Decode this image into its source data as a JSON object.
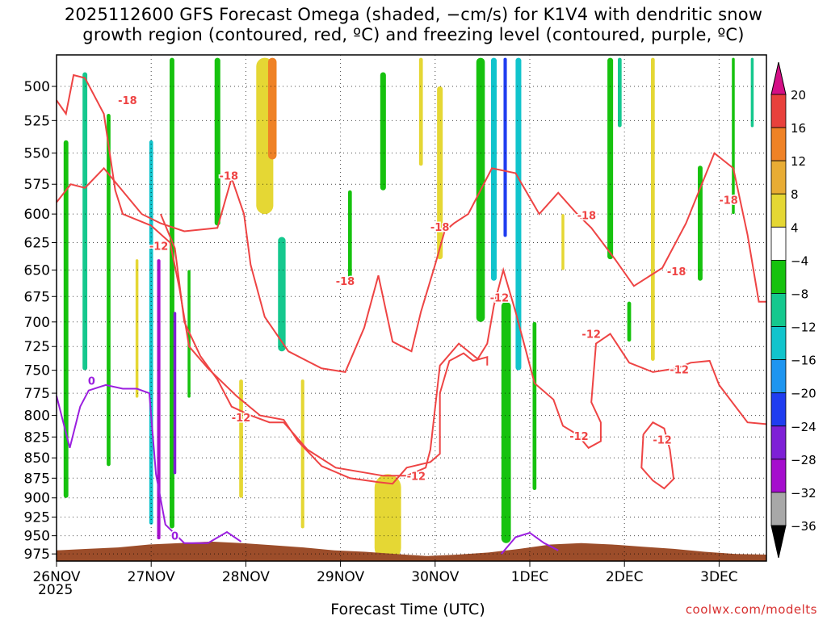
{
  "title_line1": "2025112600 GFS Forecast Omega (shaded, −cm/s) for K1V4 with dendritic snow",
  "title_line2": "growth region (contoured, red, ºC) and freezing level (contoured, purple, ºC)",
  "credit": "coolwx.com/modelts",
  "chart_data": {
    "type": "time-height contour",
    "xlabel": "Forecast Time (UTC)",
    "year_label": "2025",
    "x_ticks": [
      "26NOV",
      "27NOV",
      "28NOV",
      "29NOV",
      "30NOV",
      "1DEC",
      "2DEC",
      "3DEC"
    ],
    "x_range_days": [
      0,
      7.5
    ],
    "y_ticks": [
      500,
      525,
      550,
      575,
      600,
      625,
      650,
      675,
      700,
      725,
      750,
      775,
      800,
      825,
      850,
      875,
      900,
      925,
      950,
      975
    ],
    "y_range_hPa": [
      478,
      985
    ],
    "y_scale": "pressure (log)",
    "grid": "dotted",
    "colorbar": {
      "labels": [
        "20",
        "16",
        "12",
        "8",
        "4",
        "−4",
        "−8",
        "−12",
        "−16",
        "−20",
        "−24",
        "−28",
        "−32",
        "−36"
      ],
      "bins": [
        {
          "color": "#d40f86"
        },
        {
          "color": "#e8413c"
        },
        {
          "color": "#ef8226"
        },
        {
          "color": "#e8ac34"
        },
        {
          "color": "#e5d734"
        },
        {
          "color": "#ffffff"
        },
        {
          "color": "#16c20e"
        },
        {
          "color": "#15c88e"
        },
        {
          "color": "#11c4cc"
        },
        {
          "color": "#1e95f0"
        },
        {
          "color": "#1f3df0"
        },
        {
          "color": "#7e20d6"
        },
        {
          "color": "#a50ecd"
        },
        {
          "color": "#a8a8a8"
        },
        {
          "color": "#000000"
        }
      ]
    },
    "omega_features": [
      {
        "t": 0.1,
        "p0": 540,
        "p1": 900,
        "w": 0.05,
        "v": -8
      },
      {
        "t": 0.3,
        "p0": 490,
        "p1": 750,
        "w": 0.05,
        "v": -10
      },
      {
        "t": 0.55,
        "p0": 520,
        "p1": 860,
        "w": 0.04,
        "v": -6
      },
      {
        "t": 0.85,
        "p0": 640,
        "p1": 780,
        "w": 0.03,
        "v": 6
      },
      {
        "t": 1.0,
        "p0": 540,
        "p1": 935,
        "w": 0.04,
        "v": -14
      },
      {
        "t": 1.08,
        "p0": 640,
        "p1": 955,
        "w": 0.035,
        "v": -30
      },
      {
        "t": 1.22,
        "p0": 480,
        "p1": 940,
        "w": 0.05,
        "v": -8
      },
      {
        "t": 1.25,
        "p0": 690,
        "p1": 870,
        "w": 0.03,
        "v": -26
      },
      {
        "t": 1.4,
        "p0": 650,
        "p1": 780,
        "w": 0.03,
        "v": -6
      },
      {
        "t": 1.7,
        "p0": 480,
        "p1": 610,
        "w": 0.06,
        "v": -7
      },
      {
        "t": 1.95,
        "p0": 760,
        "p1": 900,
        "w": 0.04,
        "v": 6
      },
      {
        "t": 2.2,
        "p0": 480,
        "p1": 600,
        "w": 0.18,
        "v": 6
      },
      {
        "t": 2.28,
        "p0": 480,
        "p1": 555,
        "w": 0.09,
        "v": 12
      },
      {
        "t": 2.38,
        "p0": 620,
        "p1": 730,
        "w": 0.08,
        "v": -9
      },
      {
        "t": 2.6,
        "p0": 760,
        "p1": 940,
        "w": 0.035,
        "v": 6
      },
      {
        "t": 3.1,
        "p0": 580,
        "p1": 660,
        "w": 0.04,
        "v": -7
      },
      {
        "t": 3.45,
        "p0": 490,
        "p1": 580,
        "w": 0.06,
        "v": -7
      },
      {
        "t": 3.5,
        "p0": 870,
        "p1": 985,
        "w": 0.28,
        "v": 6
      },
      {
        "t": 3.85,
        "p0": 480,
        "p1": 560,
        "w": 0.04,
        "v": 6
      },
      {
        "t": 4.05,
        "p0": 500,
        "p1": 640,
        "w": 0.06,
        "v": 6
      },
      {
        "t": 4.48,
        "p0": 480,
        "p1": 700,
        "w": 0.09,
        "v": -8
      },
      {
        "t": 4.62,
        "p0": 480,
        "p1": 660,
        "w": 0.06,
        "v": -16
      },
      {
        "t": 4.74,
        "p0": 480,
        "p1": 620,
        "w": 0.035,
        "v": -22
      },
      {
        "t": 4.88,
        "p0": 480,
        "p1": 750,
        "w": 0.06,
        "v": -13
      },
      {
        "t": 4.75,
        "p0": 680,
        "p1": 960,
        "w": 0.1,
        "v": -8
      },
      {
        "t": 5.05,
        "p0": 700,
        "p1": 890,
        "w": 0.04,
        "v": -8
      },
      {
        "t": 5.35,
        "p0": 600,
        "p1": 650,
        "w": 0.03,
        "v": 5
      },
      {
        "t": 5.85,
        "p0": 480,
        "p1": 640,
        "w": 0.06,
        "v": -7
      },
      {
        "t": 5.95,
        "p0": 480,
        "p1": 530,
        "w": 0.04,
        "v": -9
      },
      {
        "t": 6.05,
        "p0": 680,
        "p1": 720,
        "w": 0.04,
        "v": -6
      },
      {
        "t": 6.3,
        "p0": 480,
        "p1": 740,
        "w": 0.04,
        "v": 6
      },
      {
        "t": 6.8,
        "p0": 560,
        "p1": 660,
        "w": 0.05,
        "v": -8
      },
      {
        "t": 7.15,
        "p0": 480,
        "p1": 600,
        "w": 0.03,
        "v": -7
      },
      {
        "t": 7.35,
        "p0": 480,
        "p1": 530,
        "w": 0.03,
        "v": -9
      }
    ],
    "contours": [
      {
        "label": "-18",
        "color": "#ee4444",
        "points": [
          [
            0,
            510
          ],
          [
            0.1,
            520
          ],
          [
            0.18,
            492
          ],
          [
            0.3,
            494
          ],
          [
            0.5,
            520
          ],
          [
            0.62,
            580
          ],
          [
            0.7,
            600
          ],
          [
            0.85,
            605
          ],
          [
            1.0,
            610
          ],
          [
            1.2,
            625
          ],
          [
            1.3,
            668
          ],
          [
            1.4,
            725
          ],
          [
            1.6,
            748
          ],
          [
            1.9,
            778
          ],
          [
            2.15,
            800
          ],
          [
            2.4,
            805
          ],
          [
            2.55,
            830
          ],
          [
            2.8,
            860
          ],
          [
            3.1,
            875
          ],
          [
            3.4,
            880
          ],
          [
            3.55,
            882
          ],
          [
            3.7,
            862
          ],
          [
            3.95,
            855
          ],
          [
            4.05,
            845
          ],
          [
            4.05,
            775
          ],
          [
            4.15,
            740
          ],
          [
            4.3,
            732
          ],
          [
            4.4,
            740
          ],
          [
            4.55,
            736
          ],
          [
            4.55,
            745
          ]
        ]
      },
      {
        "label": "-18",
        "color": "#ee4444",
        "points": [
          [
            0,
            590
          ],
          [
            0.15,
            575
          ],
          [
            0.3,
            578
          ],
          [
            0.5,
            562
          ],
          [
            0.65,
            576
          ],
          [
            0.9,
            600
          ],
          [
            1.1,
            608
          ],
          [
            1.35,
            615
          ],
          [
            1.7,
            612
          ],
          [
            1.85,
            570
          ],
          [
            1.98,
            600
          ],
          [
            2.05,
            645
          ],
          [
            2.2,
            695
          ],
          [
            2.45,
            730
          ],
          [
            2.8,
            748
          ],
          [
            3.05,
            752
          ],
          [
            3.25,
            706
          ],
          [
            3.4,
            655
          ],
          [
            3.55,
            720
          ],
          [
            3.75,
            730
          ],
          [
            3.85,
            690
          ],
          [
            4.0,
            645
          ],
          [
            4.1,
            615
          ],
          [
            4.2,
            608
          ],
          [
            4.35,
            600
          ],
          [
            4.6,
            562
          ],
          [
            4.85,
            566
          ],
          [
            5.1,
            600
          ],
          [
            5.3,
            582
          ],
          [
            5.5,
            600
          ],
          [
            5.65,
            612
          ],
          [
            5.9,
            640
          ],
          [
            6.1,
            665
          ],
          [
            6.4,
            648
          ],
          [
            6.65,
            608
          ],
          [
            6.95,
            550
          ],
          [
            7.15,
            562
          ],
          [
            7.3,
            618
          ],
          [
            7.42,
            680
          ],
          [
            7.5,
            680
          ]
        ]
      },
      {
        "label": "-12",
        "color": "#ee4444",
        "points": [
          [
            1.1,
            600
          ],
          [
            1.25,
            630
          ],
          [
            1.35,
            700
          ],
          [
            1.52,
            735
          ],
          [
            1.7,
            760
          ],
          [
            1.85,
            790
          ],
          [
            2.05,
            800
          ],
          [
            2.25,
            808
          ],
          [
            2.4,
            808
          ],
          [
            2.65,
            840
          ],
          [
            2.95,
            862
          ],
          [
            3.25,
            868
          ],
          [
            3.45,
            872
          ],
          [
            3.7,
            872
          ],
          [
            3.9,
            862
          ],
          [
            3.95,
            840
          ],
          [
            4.05,
            745
          ],
          [
            4.25,
            722
          ],
          [
            4.45,
            738
          ],
          [
            4.55,
            722
          ],
          [
            4.62,
            684
          ],
          [
            4.72,
            650
          ],
          [
            4.85,
            690
          ],
          [
            5.05,
            764
          ],
          [
            5.25,
            782
          ],
          [
            5.35,
            812
          ],
          [
            5.5,
            822
          ],
          [
            5.62,
            838
          ],
          [
            5.75,
            830
          ],
          [
            5.75,
            808
          ],
          [
            5.65,
            785
          ],
          [
            5.7,
            722
          ],
          [
            5.85,
            712
          ],
          [
            6.05,
            742
          ],
          [
            6.3,
            752
          ],
          [
            6.55,
            748
          ],
          [
            6.7,
            742
          ],
          [
            6.9,
            740
          ],
          [
            7.0,
            766
          ],
          [
            7.3,
            808
          ],
          [
            7.5,
            810
          ]
        ]
      },
      {
        "label": "-12",
        "color": "#ee4444",
        "points": [
          [
            6.2,
            822
          ],
          [
            6.18,
            862
          ],
          [
            6.3,
            878
          ],
          [
            6.42,
            888
          ],
          [
            6.52,
            876
          ],
          [
            6.48,
            840
          ],
          [
            6.42,
            815
          ],
          [
            6.3,
            808
          ],
          [
            6.2,
            822
          ]
        ]
      },
      {
        "label": "0",
        "color": "#9b1fdf",
        "points": [
          [
            0,
            778
          ],
          [
            0.14,
            838
          ],
          [
            0.25,
            790
          ],
          [
            0.34,
            772
          ],
          [
            0.52,
            766
          ],
          [
            0.7,
            770
          ],
          [
            0.85,
            770
          ],
          [
            0.98,
            775
          ],
          [
            1.05,
            870
          ],
          [
            1.15,
            935
          ],
          [
            1.35,
            960
          ],
          [
            1.6,
            960
          ],
          [
            1.8,
            945
          ],
          [
            1.95,
            958
          ]
        ]
      },
      {
        "label": "",
        "color": "#9b1fdf",
        "points": [
          [
            4.7,
            975
          ],
          [
            4.85,
            952
          ],
          [
            5.0,
            946
          ],
          [
            5.15,
            960
          ],
          [
            5.3,
            970
          ]
        ]
      }
    ],
    "contour_labels": [
      {
        "text": "-18",
        "t": 0.75,
        "p": 510
      },
      {
        "text": "-18",
        "t": 1.82,
        "p": 568
      },
      {
        "text": "-12",
        "t": 1.08,
        "p": 628
      },
      {
        "text": "-18",
        "t": 3.05,
        "p": 660
      },
      {
        "text": "-18",
        "t": 4.05,
        "p": 611
      },
      {
        "text": "-12",
        "t": 4.68,
        "p": 676
      },
      {
        "text": "-18",
        "t": 5.6,
        "p": 601
      },
      {
        "text": "-18",
        "t": 6.55,
        "p": 651
      },
      {
        "text": "-18",
        "t": 7.1,
        "p": 588
      },
      {
        "text": "-12",
        "t": 1.95,
        "p": 802
      },
      {
        "text": "-12",
        "t": 3.8,
        "p": 872
      },
      {
        "text": "-12",
        "t": 5.65,
        "p": 712
      },
      {
        "text": "-12",
        "t": 6.58,
        "p": 749
      },
      {
        "text": "-12",
        "t": 5.52,
        "p": 824
      },
      {
        "text": "-12",
        "t": 6.4,
        "p": 828
      },
      {
        "text": "0",
        "t": 0.37,
        "p": 761
      },
      {
        "text": "0",
        "t": 1.25,
        "p": 950
      }
    ],
    "terrain": {
      "color": "#9c4d2a",
      "surface_hPa": [
        970,
        968,
        966,
        962,
        960,
        958,
        960,
        963,
        966,
        970,
        972,
        975,
        978,
        976,
        973,
        968,
        962,
        960,
        962,
        965,
        968,
        972,
        975,
        976
      ]
    }
  }
}
